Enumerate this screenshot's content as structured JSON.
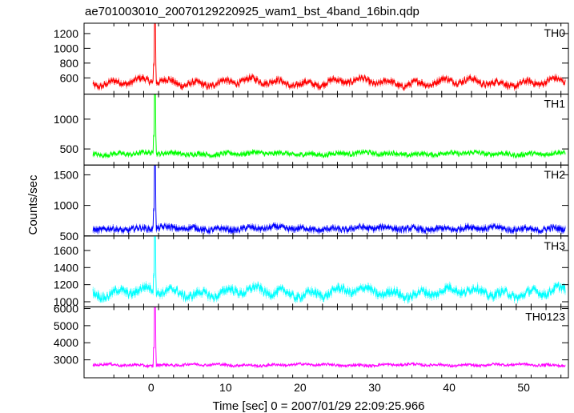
{
  "chart_data": {
    "type": "line",
    "title": "ae701003010_20070129220925_wam1_bst_4band_16bin.qdp",
    "xlabel": "Time [sec] 0 = 2007/01/29 22:09:25.966",
    "ylabel": "Counts/sec",
    "xlim": [
      -9,
      56
    ],
    "x_ticks": [
      0,
      10,
      20,
      30,
      40,
      50
    ],
    "x_tick_labels": [
      "0",
      "10",
      "20",
      "30",
      "40",
      "50"
    ],
    "grid": false,
    "legend": "none",
    "burst_time": 0.5,
    "panels": [
      {
        "name": "TH0",
        "color": "#ff0000",
        "ylim": [
          380,
          1340
        ],
        "ticks": [
          600,
          800,
          1000,
          1200
        ],
        "tick_labels": [
          "600",
          "800",
          "1000",
          "1200"
        ],
        "base": 540,
        "noise": 40,
        "slow": 55,
        "peak": 1340
      },
      {
        "name": "TH1",
        "color": "#00ff00",
        "ylim": [
          230,
          1420
        ],
        "ticks": [
          500,
          1000
        ],
        "tick_labels": [
          "500",
          "1000"
        ],
        "base": 420,
        "noise": 35,
        "slow": 25,
        "peak": 1420
      },
      {
        "name": "TH2",
        "color": "#0000ff",
        "ylim": [
          500,
          1660
        ],
        "ticks": [
          500,
          1000,
          1500
        ],
        "tick_labels": [
          "500",
          "1000",
          "1500"
        ],
        "base": 620,
        "noise": 45,
        "slow": 30,
        "peak": 1650
      },
      {
        "name": "TH3",
        "color": "#00ffff",
        "ylim": [
          940,
          1770
        ],
        "ticks": [
          1000,
          1200,
          1400,
          1600
        ],
        "tick_labels": [
          "1000",
          "1200",
          "1400",
          "1600"
        ],
        "base": 1110,
        "noise": 45,
        "slow": 60,
        "peak": 1770
      },
      {
        "name": "TH0123",
        "color": "#ff00ff",
        "ylim": [
          1950,
          6100
        ],
        "ticks": [
          3000,
          4000,
          5000,
          6000
        ],
        "tick_labels": [
          "3000",
          "4000",
          "5000",
          "6000"
        ],
        "base": 2700,
        "noise": 70,
        "slow": 60,
        "peak": 6050
      }
    ]
  }
}
